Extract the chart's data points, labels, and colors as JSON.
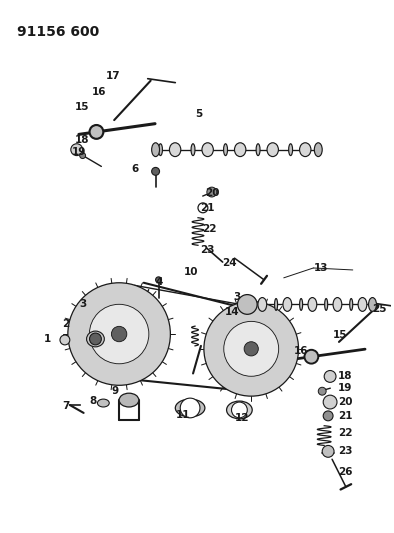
{
  "title": "91156 600",
  "bg_color": "#ffffff",
  "line_color": "#1a1a1a",
  "figsize": [
    3.94,
    5.33
  ],
  "dpi": 100
}
